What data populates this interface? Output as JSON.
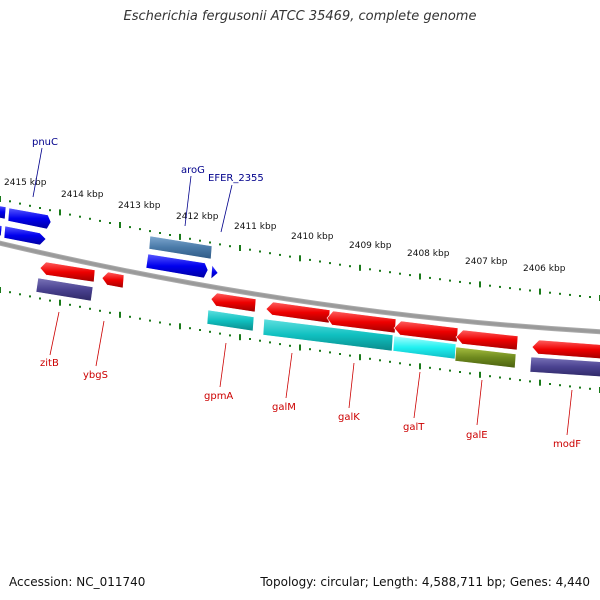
{
  "title": "Escherichia fergusonii ATCC 35469, complete genome",
  "footer": {
    "accession": "Accession: NC_011740",
    "summary": "Topology: circular; Length: 4,588,711 bp; Genes: 4,440"
  },
  "colors": {
    "forward_cds": "#0000ee",
    "reverse_cds": "#ee0000",
    "label_forward": "#00008b",
    "label_reverse": "#cc0000",
    "tick": "#1a7a1a",
    "backbone": "#808080"
  },
  "scale_labels": [
    "2415 kbp",
    "2414 kbp",
    "2413 kbp",
    "2412 kbp",
    "2411 kbp",
    "2410 kbp",
    "2409 kbp",
    "2408 kbp",
    "2407 kbp",
    "2406 kbp"
  ],
  "gene_labels_forward": [
    "pnuC",
    "aroG",
    "EFER_2355"
  ],
  "gene_labels_reverse": [
    "zitB",
    "ybgS",
    "gpmA",
    "galM",
    "galK",
    "galT",
    "galE",
    "modF"
  ]
}
